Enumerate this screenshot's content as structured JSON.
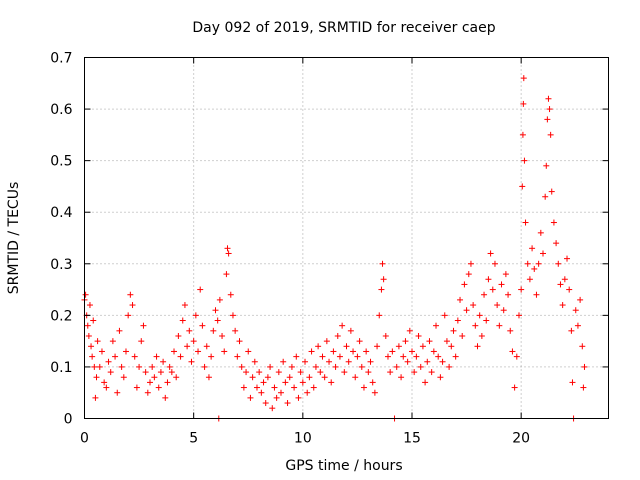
{
  "chart_data": {
    "type": "scatter",
    "title": "Day 092 of 2019, SRMTID for receiver caep",
    "xlabel": "GPS time / hours",
    "ylabel": "SRMTID / TECUs",
    "xlim": [
      0,
      24
    ],
    "ylim": [
      0,
      0.7
    ],
    "xticks": [
      0,
      5,
      10,
      15,
      20
    ],
    "xtick_labels": [
      "0",
      "5",
      "10",
      "15",
      "20"
    ],
    "yticks": [
      0,
      0.1,
      0.2,
      0.3,
      0.4,
      0.5,
      0.6,
      0.7
    ],
    "ytick_labels": [
      "0",
      "0.1",
      "0.2",
      "0.3",
      "0.4",
      "0.5",
      "0.6",
      "0.7"
    ],
    "grid": true,
    "marker": "+",
    "color": "#ff0000",
    "series": [
      {
        "name": "SRMTID",
        "points": [
          [
            0.0,
            0.23
          ],
          [
            0.05,
            0.24
          ],
          [
            0.1,
            0.2
          ],
          [
            0.15,
            0.18
          ],
          [
            0.2,
            0.16
          ],
          [
            0.25,
            0.22
          ],
          [
            0.3,
            0.14
          ],
          [
            0.35,
            0.12
          ],
          [
            0.4,
            0.19
          ],
          [
            0.45,
            0.1
          ],
          [
            0.5,
            0.04
          ],
          [
            0.55,
            0.08
          ],
          [
            0.6,
            0.15
          ],
          [
            0.7,
            0.1
          ],
          [
            0.8,
            0.13
          ],
          [
            0.9,
            0.07
          ],
          [
            1.0,
            0.06
          ],
          [
            1.1,
            0.11
          ],
          [
            1.2,
            0.09
          ],
          [
            1.3,
            0.15
          ],
          [
            1.4,
            0.12
          ],
          [
            1.5,
            0.05
          ],
          [
            1.6,
            0.17
          ],
          [
            1.7,
            0.1
          ],
          [
            1.8,
            0.08
          ],
          [
            1.9,
            0.13
          ],
          [
            2.0,
            0.2
          ],
          [
            2.1,
            0.24
          ],
          [
            2.2,
            0.22
          ],
          [
            2.3,
            0.12
          ],
          [
            2.4,
            0.06
          ],
          [
            2.5,
            0.1
          ],
          [
            2.6,
            0.15
          ],
          [
            2.7,
            0.18
          ],
          [
            2.8,
            0.09
          ],
          [
            2.9,
            0.05
          ],
          [
            3.0,
            0.07
          ],
          [
            3.1,
            0.1
          ],
          [
            3.2,
            0.08
          ],
          [
            3.3,
            0.12
          ],
          [
            3.4,
            0.06
          ],
          [
            3.5,
            0.09
          ],
          [
            3.6,
            0.11
          ],
          [
            3.7,
            0.04
          ],
          [
            3.8,
            0.07
          ],
          [
            3.9,
            0.1
          ],
          [
            4.0,
            0.09
          ],
          [
            4.1,
            0.13
          ],
          [
            4.2,
            0.08
          ],
          [
            4.3,
            0.16
          ],
          [
            4.4,
            0.12
          ],
          [
            4.5,
            0.19
          ],
          [
            4.6,
            0.22
          ],
          [
            4.7,
            0.14
          ],
          [
            4.8,
            0.17
          ],
          [
            4.9,
            0.11
          ],
          [
            5.0,
            0.15
          ],
          [
            5.1,
            0.2
          ],
          [
            5.2,
            0.13
          ],
          [
            5.3,
            0.25
          ],
          [
            5.4,
            0.18
          ],
          [
            5.5,
            0.1
          ],
          [
            5.6,
            0.14
          ],
          [
            5.7,
            0.08
          ],
          [
            5.8,
            0.12
          ],
          [
            5.9,
            0.17
          ],
          [
            6.0,
            0.21
          ],
          [
            6.1,
            0.19
          ],
          [
            6.15,
            0.0
          ],
          [
            6.2,
            0.23
          ],
          [
            6.3,
            0.16
          ],
          [
            6.4,
            0.13
          ],
          [
            6.5,
            0.28
          ],
          [
            6.55,
            0.33
          ],
          [
            6.6,
            0.32
          ],
          [
            6.7,
            0.24
          ],
          [
            6.8,
            0.2
          ],
          [
            6.9,
            0.17
          ],
          [
            7.0,
            0.12
          ],
          [
            7.1,
            0.15
          ],
          [
            7.2,
            0.1
          ],
          [
            7.3,
            0.06
          ],
          [
            7.4,
            0.09
          ],
          [
            7.5,
            0.13
          ],
          [
            7.6,
            0.04
          ],
          [
            7.7,
            0.08
          ],
          [
            7.8,
            0.11
          ],
          [
            7.9,
            0.06
          ],
          [
            8.0,
            0.09
          ],
          [
            8.1,
            0.05
          ],
          [
            8.2,
            0.07
          ],
          [
            8.3,
            0.03
          ],
          [
            8.4,
            0.08
          ],
          [
            8.5,
            0.1
          ],
          [
            8.6,
            0.02
          ],
          [
            8.7,
            0.06
          ],
          [
            8.8,
            0.04
          ],
          [
            8.9,
            0.09
          ],
          [
            9.0,
            0.05
          ],
          [
            9.1,
            0.11
          ],
          [
            9.2,
            0.07
          ],
          [
            9.3,
            0.03
          ],
          [
            9.4,
            0.08
          ],
          [
            9.5,
            0.1
          ],
          [
            9.6,
            0.06
          ],
          [
            9.7,
            0.12
          ],
          [
            9.8,
            0.04
          ],
          [
            9.9,
            0.09
          ],
          [
            10.0,
            0.07
          ],
          [
            10.1,
            0.11
          ],
          [
            10.2,
            0.05
          ],
          [
            10.3,
            0.08
          ],
          [
            10.4,
            0.13
          ],
          [
            10.5,
            0.06
          ],
          [
            10.6,
            0.1
          ],
          [
            10.7,
            0.14
          ],
          [
            10.8,
            0.09
          ],
          [
            10.9,
            0.12
          ],
          [
            11.0,
            0.08
          ],
          [
            11.1,
            0.15
          ],
          [
            11.2,
            0.11
          ],
          [
            11.3,
            0.07
          ],
          [
            11.4,
            0.13
          ],
          [
            11.5,
            0.1
          ],
          [
            11.6,
            0.16
          ],
          [
            11.7,
            0.12
          ],
          [
            11.8,
            0.18
          ],
          [
            11.9,
            0.09
          ],
          [
            12.0,
            0.14
          ],
          [
            12.1,
            0.11
          ],
          [
            12.2,
            0.17
          ],
          [
            12.3,
            0.13
          ],
          [
            12.4,
            0.08
          ],
          [
            12.5,
            0.12
          ],
          [
            12.6,
            0.15
          ],
          [
            12.7,
            0.1
          ],
          [
            12.8,
            0.06
          ],
          [
            12.9,
            0.13
          ],
          [
            13.0,
            0.09
          ],
          [
            13.1,
            0.11
          ],
          [
            13.2,
            0.07
          ],
          [
            13.3,
            0.05
          ],
          [
            13.4,
            0.14
          ],
          [
            13.5,
            0.2
          ],
          [
            13.6,
            0.25
          ],
          [
            13.65,
            0.3
          ],
          [
            13.7,
            0.27
          ],
          [
            13.8,
            0.16
          ],
          [
            13.9,
            0.12
          ],
          [
            14.0,
            0.09
          ],
          [
            14.1,
            0.13
          ],
          [
            14.2,
            0.0
          ],
          [
            14.3,
            0.1
          ],
          [
            14.4,
            0.14
          ],
          [
            14.5,
            0.08
          ],
          [
            14.6,
            0.12
          ],
          [
            14.7,
            0.15
          ],
          [
            14.8,
            0.11
          ],
          [
            14.9,
            0.17
          ],
          [
            15.0,
            0.13
          ],
          [
            15.1,
            0.09
          ],
          [
            15.2,
            0.12
          ],
          [
            15.3,
            0.16
          ],
          [
            15.4,
            0.1
          ],
          [
            15.5,
            0.14
          ],
          [
            15.6,
            0.07
          ],
          [
            15.7,
            0.11
          ],
          [
            15.8,
            0.15
          ],
          [
            15.9,
            0.09
          ],
          [
            16.0,
            0.13
          ],
          [
            16.1,
            0.18
          ],
          [
            16.2,
            0.12
          ],
          [
            16.3,
            0.08
          ],
          [
            16.4,
            0.11
          ],
          [
            16.5,
            0.2
          ],
          [
            16.6,
            0.15
          ],
          [
            16.7,
            0.1
          ],
          [
            16.8,
            0.14
          ],
          [
            16.9,
            0.17
          ],
          [
            17.0,
            0.12
          ],
          [
            17.1,
            0.19
          ],
          [
            17.2,
            0.23
          ],
          [
            17.3,
            0.16
          ],
          [
            17.4,
            0.26
          ],
          [
            17.5,
            0.21
          ],
          [
            17.6,
            0.28
          ],
          [
            17.7,
            0.3
          ],
          [
            17.8,
            0.22
          ],
          [
            17.9,
            0.18
          ],
          [
            18.0,
            0.14
          ],
          [
            18.1,
            0.2
          ],
          [
            18.2,
            0.16
          ],
          [
            18.3,
            0.24
          ],
          [
            18.4,
            0.19
          ],
          [
            18.5,
            0.27
          ],
          [
            18.6,
            0.32
          ],
          [
            18.7,
            0.25
          ],
          [
            18.8,
            0.3
          ],
          [
            18.9,
            0.22
          ],
          [
            19.0,
            0.18
          ],
          [
            19.1,
            0.26
          ],
          [
            19.2,
            0.21
          ],
          [
            19.3,
            0.28
          ],
          [
            19.4,
            0.24
          ],
          [
            19.5,
            0.17
          ],
          [
            19.6,
            0.13
          ],
          [
            19.7,
            0.06
          ],
          [
            19.8,
            0.12
          ],
          [
            19.9,
            0.2
          ],
          [
            20.0,
            0.25
          ],
          [
            20.05,
            0.45
          ],
          [
            20.08,
            0.55
          ],
          [
            20.1,
            0.61
          ],
          [
            20.12,
            0.66
          ],
          [
            20.15,
            0.5
          ],
          [
            20.2,
            0.38
          ],
          [
            20.3,
            0.3
          ],
          [
            20.4,
            0.27
          ],
          [
            20.5,
            0.33
          ],
          [
            20.6,
            0.29
          ],
          [
            20.7,
            0.24
          ],
          [
            20.8,
            0.3
          ],
          [
            20.9,
            0.36
          ],
          [
            21.0,
            0.32
          ],
          [
            21.1,
            0.43
          ],
          [
            21.15,
            0.49
          ],
          [
            21.2,
            0.58
          ],
          [
            21.25,
            0.62
          ],
          [
            21.3,
            0.6
          ],
          [
            21.35,
            0.55
          ],
          [
            21.4,
            0.44
          ],
          [
            21.5,
            0.38
          ],
          [
            21.6,
            0.34
          ],
          [
            21.7,
            0.3
          ],
          [
            21.8,
            0.26
          ],
          [
            21.9,
            0.22
          ],
          [
            22.0,
            0.27
          ],
          [
            22.1,
            0.31
          ],
          [
            22.2,
            0.25
          ],
          [
            22.3,
            0.17
          ],
          [
            22.35,
            0.07
          ],
          [
            22.4,
            0.0
          ],
          [
            22.5,
            0.21
          ],
          [
            22.6,
            0.18
          ],
          [
            22.7,
            0.23
          ],
          [
            22.8,
            0.14
          ],
          [
            22.85,
            0.06
          ],
          [
            22.9,
            0.1
          ]
        ]
      }
    ]
  }
}
